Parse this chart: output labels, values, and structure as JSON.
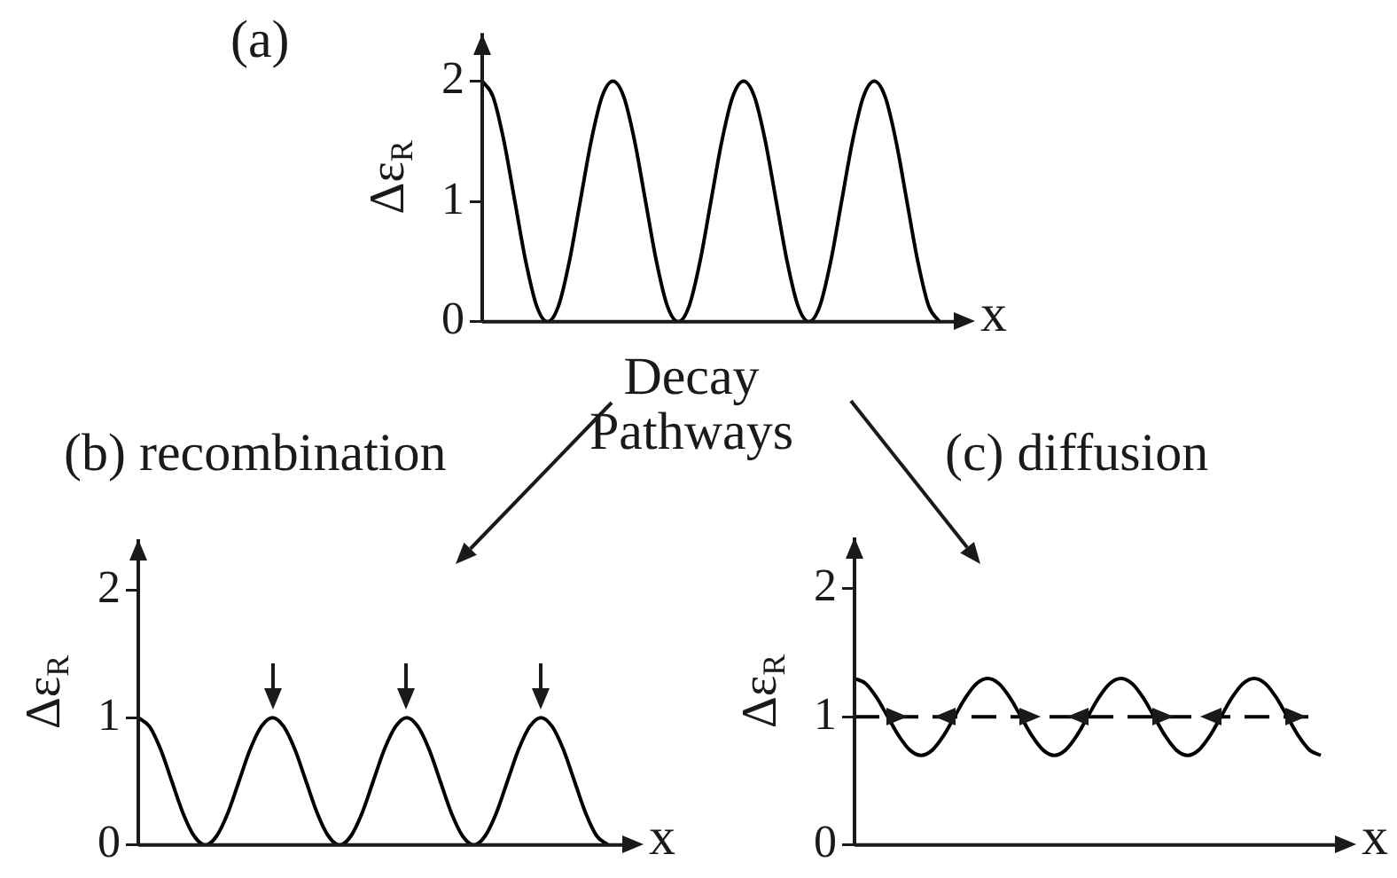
{
  "chart_data": [
    {
      "type": "line",
      "title": "(a)",
      "xlabel": "x",
      "ylabel": "Δε$_{R}$",
      "annotations": [
        "Decay Pathways"
      ],
      "categories": [
        null,
        null,
        null,
        null,
        null,
        null,
        null,
        null,
        null,
        null,
        null,
        null,
        null,
        null,
        null,
        null,
        null,
        null,
        null,
        null,
        null,
        null,
        null,
        null,
        null,
        null,
        null,
        null,
        null,
        null,
        null,
        null,
        null,
        null,
        null,
        null,
        null,
        null,
        null,
        null,
        null,
        null,
        null
      ],
      "values": [
        2,
        1.87,
        1.5,
        1,
        0.5,
        0.13,
        0,
        0.13,
        0.5,
        1,
        1.5,
        1.87,
        2,
        1.87,
        1.5,
        1,
        0.5,
        0.13,
        0,
        0.13,
        0.5,
        1,
        1.5,
        1.87,
        2,
        1.87,
        1.5,
        1,
        0.5,
        0.13,
        0,
        0.13,
        0.5,
        1,
        1.5,
        1.87,
        2,
        1.87,
        1.5,
        1,
        0.5,
        0.13,
        0
      ],
      "color": "#000000",
      "ylim": [
        0,
        2.4
      ],
      "yticks": [
        0,
        1,
        2
      ]
    },
    {
      "type": "line",
      "title": "(b) recombination",
      "xlabel": "x",
      "ylabel": "Δε$_{R}$",
      "categories": [
        null,
        null,
        null,
        null,
        null,
        null,
        null,
        null,
        null,
        null,
        null,
        null,
        null,
        null,
        null,
        null,
        null,
        null,
        null,
        null,
        null,
        null,
        null,
        null,
        null,
        null,
        null,
        null,
        null,
        null,
        null,
        null,
        null,
        null,
        null,
        null,
        null,
        null,
        null,
        null,
        null,
        null,
        null
      ],
      "values": [
        1,
        0.93,
        0.75,
        0.5,
        0.25,
        0.07,
        0,
        0.07,
        0.25,
        0.5,
        0.75,
        0.93,
        1,
        0.93,
        0.75,
        0.5,
        0.25,
        0.07,
        0,
        0.07,
        0.25,
        0.5,
        0.75,
        0.93,
        1,
        0.93,
        0.75,
        0.5,
        0.25,
        0.07,
        0,
        0.07,
        0.25,
        0.5,
        0.75,
        0.93,
        1,
        0.93,
        0.75,
        0.5,
        0.25,
        0.07,
        0
      ],
      "color": "#000000",
      "ylim": [
        0,
        2.4
      ],
      "yticks": [
        0,
        1,
        2
      ]
    },
    {
      "type": "line",
      "title": "(c) diffusion",
      "xlabel": "x",
      "ylabel": "Δε$_{R}$",
      "categories": [
        null,
        null,
        null,
        null,
        null,
        null,
        null,
        null,
        null,
        null,
        null,
        null,
        null,
        null,
        null,
        null,
        null,
        null,
        null,
        null,
        null,
        null,
        null,
        null,
        null,
        null,
        null,
        null,
        null,
        null,
        null,
        null,
        null,
        null,
        null,
        null,
        null,
        null,
        null,
        null,
        null,
        null,
        null
      ],
      "values": [
        1.3,
        1.26,
        1.15,
        1,
        0.85,
        0.74,
        0.7,
        0.74,
        0.85,
        1,
        1.15,
        1.26,
        1.3,
        1.26,
        1.15,
        1,
        0.85,
        0.74,
        0.7,
        0.74,
        0.85,
        1,
        1.15,
        1.26,
        1.3,
        1.26,
        1.15,
        1,
        0.85,
        0.74,
        0.7,
        0.74,
        0.85,
        1,
        1.15,
        1.26,
        1.3,
        1.26,
        1.15,
        1,
        0.85,
        0.74,
        0.7
      ],
      "color": "#000000",
      "ylim": [
        0,
        2.4
      ],
      "yticks": [
        0,
        1,
        2
      ],
      "ref_lines": [
        {
          "axis": "y",
          "value": 1,
          "line_style": "dashed",
          "color": "#000000"
        }
      ]
    }
  ]
}
